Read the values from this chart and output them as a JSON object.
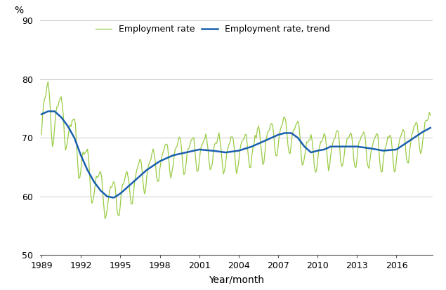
{
  "ylabel": "%",
  "xlabel": "Year/month",
  "ylim": [
    50,
    90
  ],
  "yticks": [
    50,
    60,
    70,
    80,
    90
  ],
  "xlim_start": 1989.0,
  "xlim_end": 2018.75,
  "xtick_years": [
    1989,
    1992,
    1995,
    1998,
    2001,
    2004,
    2007,
    2010,
    2013,
    2016
  ],
  "line_color_raw": "#99cc44",
  "line_color_trend": "#1a5fad",
  "legend_raw": "Employment rate",
  "legend_trend": "Employment rate, trend",
  "figsize": [
    6.35,
    4.13
  ],
  "dpi": 100,
  "trend_keypoints": [
    [
      1989.0,
      74.0
    ],
    [
      1989.5,
      74.5
    ],
    [
      1990.0,
      74.5
    ],
    [
      1990.5,
      73.5
    ],
    [
      1991.0,
      72.0
    ],
    [
      1991.5,
      70.0
    ],
    [
      1992.0,
      67.0
    ],
    [
      1992.5,
      64.5
    ],
    [
      1993.0,
      62.5
    ],
    [
      1993.5,
      61.0
    ],
    [
      1994.0,
      60.0
    ],
    [
      1994.5,
      59.8
    ],
    [
      1995.0,
      60.5
    ],
    [
      1995.5,
      61.5
    ],
    [
      1996.0,
      62.5
    ],
    [
      1997.0,
      64.5
    ],
    [
      1998.0,
      66.0
    ],
    [
      1999.0,
      67.0
    ],
    [
      2000.0,
      67.5
    ],
    [
      2001.0,
      68.0
    ],
    [
      2002.0,
      67.8
    ],
    [
      2003.0,
      67.5
    ],
    [
      2004.0,
      67.8
    ],
    [
      2005.0,
      68.5
    ],
    [
      2006.0,
      69.5
    ],
    [
      2007.0,
      70.5
    ],
    [
      2007.5,
      70.8
    ],
    [
      2008.0,
      70.8
    ],
    [
      2008.5,
      70.0
    ],
    [
      2009.0,
      68.5
    ],
    [
      2009.5,
      67.5
    ],
    [
      2010.0,
      67.8
    ],
    [
      2010.5,
      68.0
    ],
    [
      2011.0,
      68.5
    ],
    [
      2012.0,
      68.5
    ],
    [
      2013.0,
      68.5
    ],
    [
      2014.0,
      68.2
    ],
    [
      2015.0,
      67.8
    ],
    [
      2016.0,
      68.0
    ],
    [
      2017.0,
      69.5
    ],
    [
      2018.0,
      71.0
    ],
    [
      2018.67,
      71.8
    ]
  ],
  "seasonal_amp_keypoints": [
    [
      1989.0,
      5.5
    ],
    [
      1989.5,
      3.5
    ],
    [
      1990.0,
      4.0
    ],
    [
      1991.0,
      3.5
    ],
    [
      1993.0,
      3.5
    ],
    [
      1994.0,
      3.2
    ],
    [
      1996.0,
      2.8
    ],
    [
      2000.0,
      2.8
    ],
    [
      2018.67,
      2.8
    ]
  ]
}
